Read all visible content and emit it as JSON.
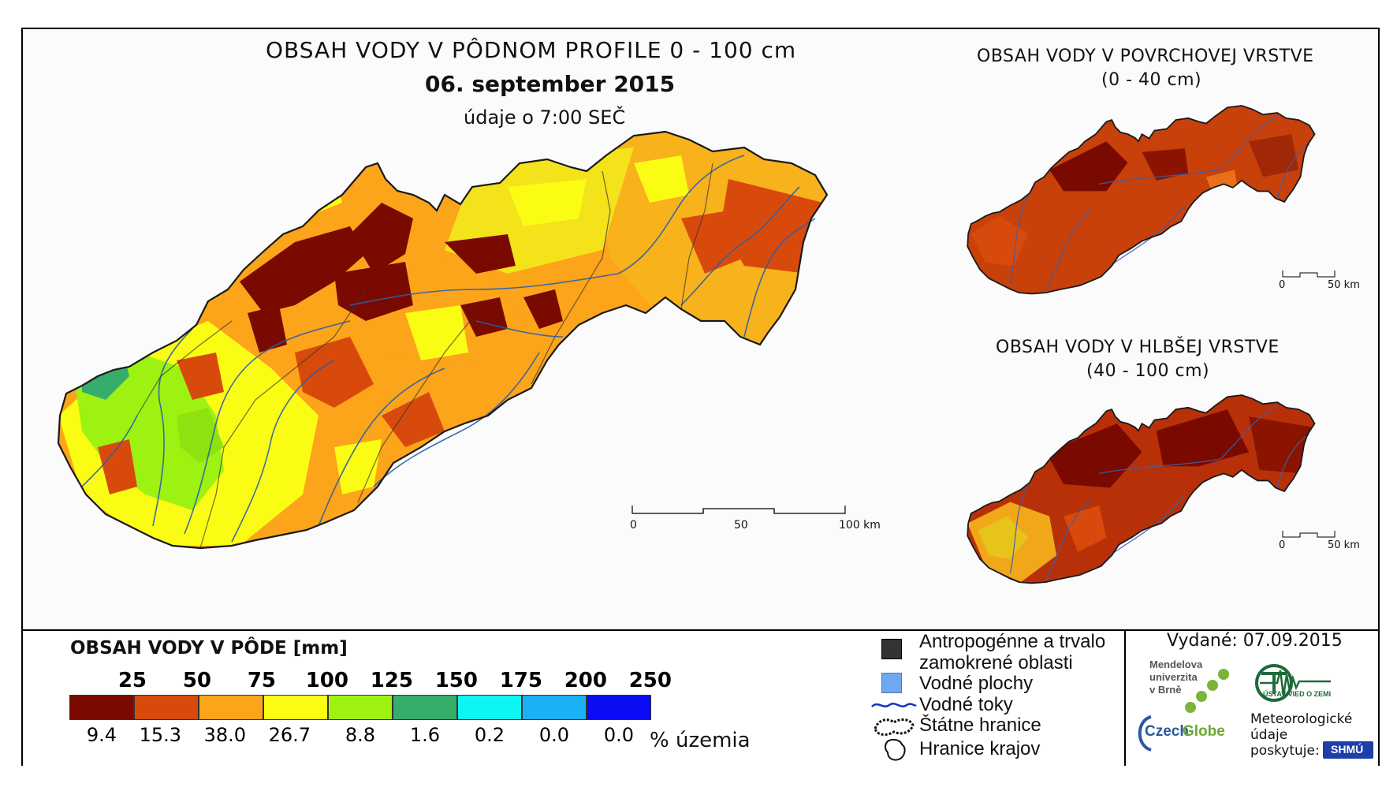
{
  "main_map": {
    "title": "OBSAH VODY V PÔDNOM PROFILE 0 - 100 cm",
    "date": "06. september 2015",
    "time_note": "údaje o 7:00 SEČ",
    "scale": {
      "ticks": [
        "0",
        "50",
        "100 km"
      ]
    }
  },
  "surface_map": {
    "title_line1": "OBSAH VODY V POVRCHOVEJ VRSTVE",
    "title_line2": "(0 - 40 cm)",
    "scale": {
      "ticks": [
        "0",
        "50 km"
      ]
    }
  },
  "deep_map": {
    "title_line1": "OBSAH VODY V HLBŠEJ VRSTVE",
    "title_line2": "(40 - 100 cm)",
    "scale": {
      "ticks": [
        "0",
        "50 km"
      ]
    }
  },
  "legend": {
    "title": "OBSAH VODY V PÔDE [mm]",
    "thresholds": [
      "25",
      "50",
      "75",
      "100",
      "125",
      "150",
      "175",
      "200",
      "250"
    ],
    "classes": [
      {
        "color": "#7a0a00",
        "percent": "9.4"
      },
      {
        "color": "#d84a0c",
        "percent": "15.3"
      },
      {
        "color": "#fca41a",
        "percent": "38.0"
      },
      {
        "color": "#fafc14",
        "percent": "26.7"
      },
      {
        "color": "#9ef212",
        "percent": "8.8"
      },
      {
        "color": "#36ad6a",
        "percent": "1.6"
      },
      {
        "color": "#0ef6f4",
        "percent": "0.2"
      },
      {
        "color": "#1ab2f4",
        "percent": "0.0"
      },
      {
        "color": "#0a0cf2",
        "percent": "0.0"
      }
    ],
    "percent_unit": "% územia"
  },
  "symbols": {
    "urban_line1": "Antropogénne a trvalo",
    "urban_line2": "zamokrené oblasti",
    "water_bodies": "Vodné plochy",
    "rivers": "Vodné toky",
    "state_border": "Štátne hranice",
    "region_border": "Hranice krajov"
  },
  "credits": {
    "issued": "Vydané: 07.09.2015",
    "mendel_line1": "Mendelova",
    "mendel_line2": "univerzita",
    "mendel_line3": "v Brně",
    "czechglobe_czech": "Czech",
    "czechglobe_globe": "Globe",
    "ustav": "ÚSTAV VIED O ZEMI",
    "met_line1": "Meteorologické",
    "met_line2": "údaje",
    "met_line3": "poskytuje:",
    "shmu": "SHMÚ"
  }
}
